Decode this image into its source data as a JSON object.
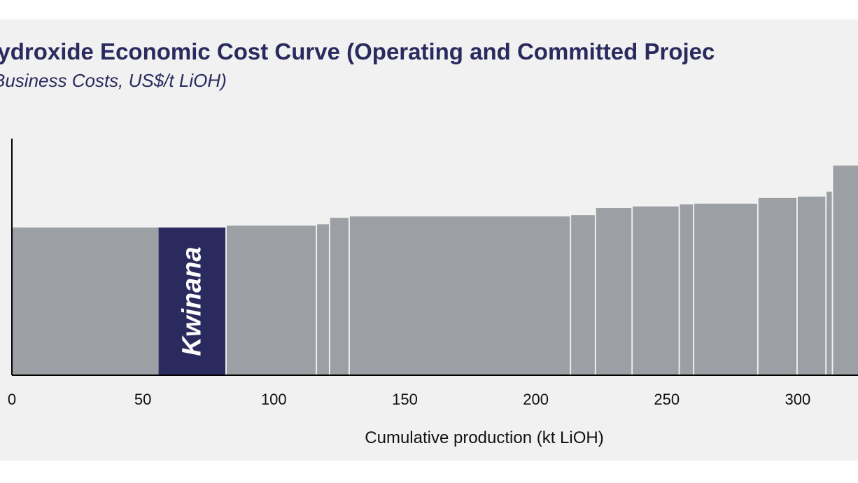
{
  "chart_data": {
    "type": "bar",
    "title": "m Hydroxide Economic Cost Curve (Operating and Committed Projec",
    "subtitle": "Business Costs, US$/t LiOH)",
    "xlabel": "Cumulative production (kt LiOH)",
    "ylabel": "",
    "xlim": [
      0,
      323
    ],
    "ylim": [
      0,
      100
    ],
    "x_ticks": [
      0,
      50,
      100,
      150,
      200,
      250,
      300
    ],
    "x_tick_labels": [
      "0",
      "50",
      "100",
      "150",
      "200",
      "250",
      "300"
    ],
    "grid": false,
    "bars": [
      {
        "x0": 0,
        "x1": 56,
        "value": 62.4,
        "label": "",
        "highlight": false
      },
      {
        "x0": 56,
        "x1": 81.5,
        "value": 62.4,
        "label": "Kwinana",
        "highlight": true
      },
      {
        "x0": 82,
        "x1": 116,
        "value": 63.2,
        "label": "",
        "highlight": false
      },
      {
        "x0": 116.5,
        "x1": 121,
        "value": 63.8,
        "label": "",
        "highlight": false
      },
      {
        "x0": 121.5,
        "x1": 128.5,
        "value": 66.5,
        "label": "",
        "highlight": false
      },
      {
        "x0": 129,
        "x1": 213,
        "value": 67.1,
        "label": "",
        "highlight": false
      },
      {
        "x0": 213.5,
        "x1": 222.5,
        "value": 67.7,
        "label": "",
        "highlight": false
      },
      {
        "x0": 223,
        "x1": 236.5,
        "value": 70.7,
        "label": "",
        "highlight": false
      },
      {
        "x0": 237,
        "x1": 254.5,
        "value": 71.3,
        "label": "",
        "highlight": false
      },
      {
        "x0": 255,
        "x1": 260,
        "value": 72.2,
        "label": "",
        "highlight": false
      },
      {
        "x0": 260.5,
        "x1": 284.5,
        "value": 72.5,
        "label": "",
        "highlight": false
      },
      {
        "x0": 285,
        "x1": 299.5,
        "value": 74.9,
        "label": "",
        "highlight": false
      },
      {
        "x0": 300,
        "x1": 310.5,
        "value": 75.5,
        "label": "",
        "highlight": false
      },
      {
        "x0": 311,
        "x1": 313,
        "value": 77.6,
        "label": "",
        "highlight": false
      },
      {
        "x0": 313.5,
        "x1": 323,
        "value": 88.6,
        "label": "",
        "highlight": false
      }
    ],
    "colors": {
      "bar": "#9c9fa4",
      "highlight": "#2b2a5e",
      "separator": "#ffffff",
      "axis": "#000000",
      "title": "#2b2a5e"
    }
  }
}
